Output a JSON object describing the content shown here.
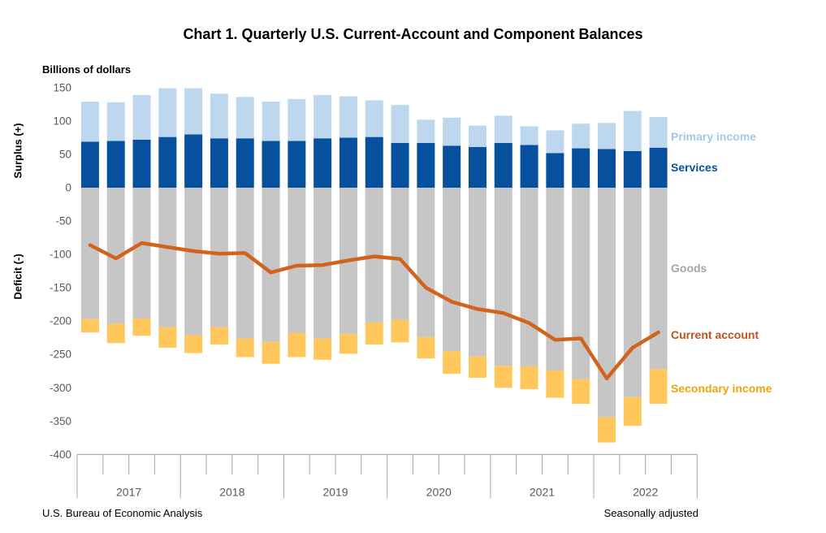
{
  "chart": {
    "title": "Chart 1. Quarterly U.S. Current-Account and Component Balances",
    "units_label": "Billions of dollars",
    "surplus_axis_label": "Surplus (+)",
    "deficit_axis_label": "Deficit (-)",
    "source_note": "U.S. Bureau of Economic Analysis",
    "adjustment_note": "Seasonally adjusted"
  },
  "chart_data": {
    "type": "bar",
    "subtype": "stacked-bars-with-line-overlay",
    "title": "Chart 1. Quarterly U.S. Current-Account and Component Balances",
    "ylabel": "Billions of dollars",
    "ylim": [
      -400,
      150
    ],
    "ytick_step": 50,
    "yticks": [
      150,
      100,
      50,
      0,
      -50,
      -100,
      -150,
      -200,
      -250,
      -300,
      -350,
      -400
    ],
    "grid": false,
    "legend_position": "right-inline",
    "axis_slots": 24,
    "year_labels": [
      "2017",
      "2018",
      "2019",
      "2020",
      "2021",
      "2022"
    ],
    "quarters_per_year_tick": 4,
    "x_quarters": [
      "2017Q1",
      "2017Q2",
      "2017Q3",
      "2017Q4",
      "2018Q1",
      "2018Q2",
      "2018Q3",
      "2018Q4",
      "2019Q1",
      "2019Q2",
      "2019Q3",
      "2019Q4",
      "2020Q1",
      "2020Q2",
      "2020Q3",
      "2020Q4",
      "2021Q1",
      "2021Q2",
      "2021Q3",
      "2021Q4",
      "2022Q1",
      "2022Q2",
      "2022Q3"
    ],
    "series": [
      {
        "name": "Primary income",
        "role": "bar",
        "stack": 2,
        "color": "#BDD7EE",
        "label_color": "#A4C8EA",
        "values": [
          60,
          58,
          67,
          73,
          69,
          67,
          62,
          59,
          63,
          65,
          62,
          55,
          57,
          35,
          42,
          32,
          41,
          28,
          34,
          37,
          39,
          60,
          46
        ]
      },
      {
        "name": "Services",
        "role": "bar",
        "stack": 1,
        "color": "#07509E",
        "label_color": "#07509E",
        "values": [
          69,
          70,
          72,
          76,
          80,
          74,
          74,
          70,
          70,
          74,
          75,
          76,
          67,
          67,
          63,
          61,
          67,
          64,
          52,
          59,
          58,
          55,
          60
        ]
      },
      {
        "name": "Goods",
        "role": "bar",
        "stack": 1,
        "color": "#C6C6C6",
        "label_color": "#A6A6A6",
        "values": [
          -197,
          -204,
          -196,
          -209,
          -221,
          -209,
          -226,
          -231,
          -218,
          -226,
          -219,
          -202,
          -198,
          -224,
          -245,
          -253,
          -267,
          -268,
          -274,
          -287,
          -344,
          -314,
          -272
        ]
      },
      {
        "name": "Secondary income",
        "role": "bar",
        "stack": 2,
        "color": "#FFC75C",
        "label_color": "#F2A30A",
        "values": [
          -20,
          -29,
          -26,
          -31,
          -27,
          -26,
          -28,
          -33,
          -36,
          -32,
          -30,
          -33,
          -34,
          -32,
          -34,
          -32,
          -33,
          -34,
          -41,
          -37,
          -38,
          -43,
          -52
        ]
      },
      {
        "name": "Current account",
        "role": "line",
        "color": "#D2631E",
        "label_color": "#C0531A",
        "values": [
          -86,
          -106,
          -83,
          -89,
          -95,
          -99,
          -98,
          -127,
          -117,
          -116,
          -109,
          -103,
          -107,
          -150,
          -171,
          -182,
          -188,
          -203,
          -228,
          -226,
          -286,
          -240,
          -217
        ]
      }
    ],
    "axis_color": "#AFAFAF",
    "tick_label_color": "#595959"
  }
}
